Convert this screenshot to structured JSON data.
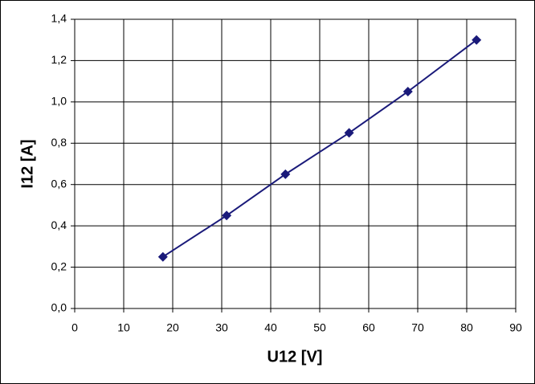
{
  "chart_data": {
    "type": "line",
    "x_label": "U12 [V]",
    "y_label": "I12 [A]",
    "x": [
      18,
      31,
      43,
      56,
      68,
      82
    ],
    "series": [
      {
        "color": "#1a1a7a",
        "values": [
          0.25,
          0.45,
          0.65,
          0.85,
          1.05,
          1.3
        ]
      }
    ],
    "xlim": [
      0,
      90
    ],
    "xticks": [
      0,
      10,
      20,
      30,
      40,
      50,
      60,
      70,
      80,
      90
    ],
    "ylim": [
      0,
      1.4
    ],
    "yticks": [
      {
        "value": 0,
        "label": "0,0"
      },
      {
        "value": 0.2,
        "label": "0,2"
      },
      {
        "value": 0.4,
        "label": "0,4"
      },
      {
        "value": 0.6,
        "label": "0,6"
      },
      {
        "value": 0.8,
        "label": "0,8"
      },
      {
        "value": 1.0,
        "label": "1,0"
      },
      {
        "value": 1.2,
        "label": "1,2"
      },
      {
        "value": 1.4,
        "label": "1,4"
      }
    ],
    "grid": true
  }
}
